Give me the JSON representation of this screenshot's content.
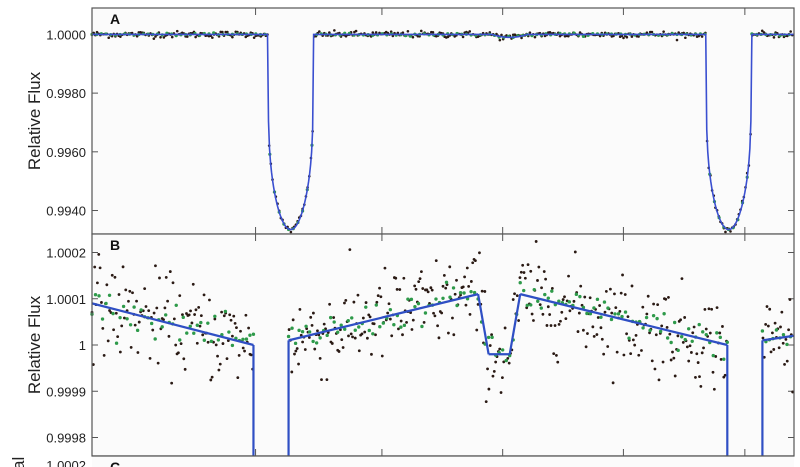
{
  "chart_data": [
    {
      "panel": "A",
      "type": "line",
      "ylabel": "Relative Flux",
      "ylim": [
        0.9932,
        1.0009
      ],
      "yticks": [
        1.0,
        0.998,
        0.996,
        0.994
      ],
      "ytick_labels": [
        "1.0000",
        "0.9980",
        "0.9960",
        "0.9940"
      ],
      "x_range": [
        0,
        1
      ],
      "model": {
        "baseline": 1.0,
        "transits": [
          {
            "center": 0.283,
            "depth": 0.00665,
            "halfwidth": 0.032
          },
          {
            "center": 0.907,
            "depth": 0.00665,
            "halfwidth": 0.032
          }
        ],
        "secondary_eclipse": {
          "center": 0.595,
          "depth": 0.0001,
          "halfwidth": 0.025
        }
      },
      "series": [
        {
          "role": "data",
          "color": "#2a1a14"
        },
        {
          "role": "binned data",
          "color": "#2e9a4a"
        },
        {
          "role": "model",
          "color": "#3a4fd0"
        }
      ]
    },
    {
      "panel": "B",
      "type": "line",
      "ylabel": "Relative Flux",
      "ylim": [
        0.99976,
        1.00024
      ],
      "yticks": [
        1.0002,
        1.0001,
        1.0,
        0.9999,
        0.9998
      ],
      "ytick_labels": [
        "1.0002",
        "1.0001",
        "1",
        "0.9999",
        "0.9998"
      ],
      "model_segments": [
        {
          "x": [
            0.0,
            0.23
          ],
          "y": [
            1.00009,
            1.0
          ]
        },
        {
          "x": [
            0.28,
            0.55
          ],
          "y": [
            1.00001,
            1.00011
          ]
        },
        {
          "x": [
            0.55,
            0.565
          ],
          "y": [
            1.00011,
            0.99998
          ]
        },
        {
          "x": [
            0.565,
            0.595
          ],
          "y": [
            0.99998,
            0.99998
          ]
        },
        {
          "x": [
            0.595,
            0.61
          ],
          "y": [
            0.99998,
            1.00011
          ]
        },
        {
          "x": [
            0.61,
            0.905
          ],
          "y": [
            1.00011,
            1.0
          ]
        },
        {
          "x": [
            0.955,
            1.0
          ],
          "y": [
            1.00001,
            1.00002
          ]
        }
      ],
      "series": [
        {
          "role": "data",
          "color": "#2a1a14"
        },
        {
          "role": "binned data",
          "color": "#2e9a4a"
        },
        {
          "role": "model",
          "color": "#2f4fc4"
        }
      ]
    },
    {
      "panel": "C",
      "type": "line",
      "ylabel": "al",
      "yticks": [
        1.0002
      ],
      "ytick_labels": [
        "1.0002"
      ]
    }
  ]
}
